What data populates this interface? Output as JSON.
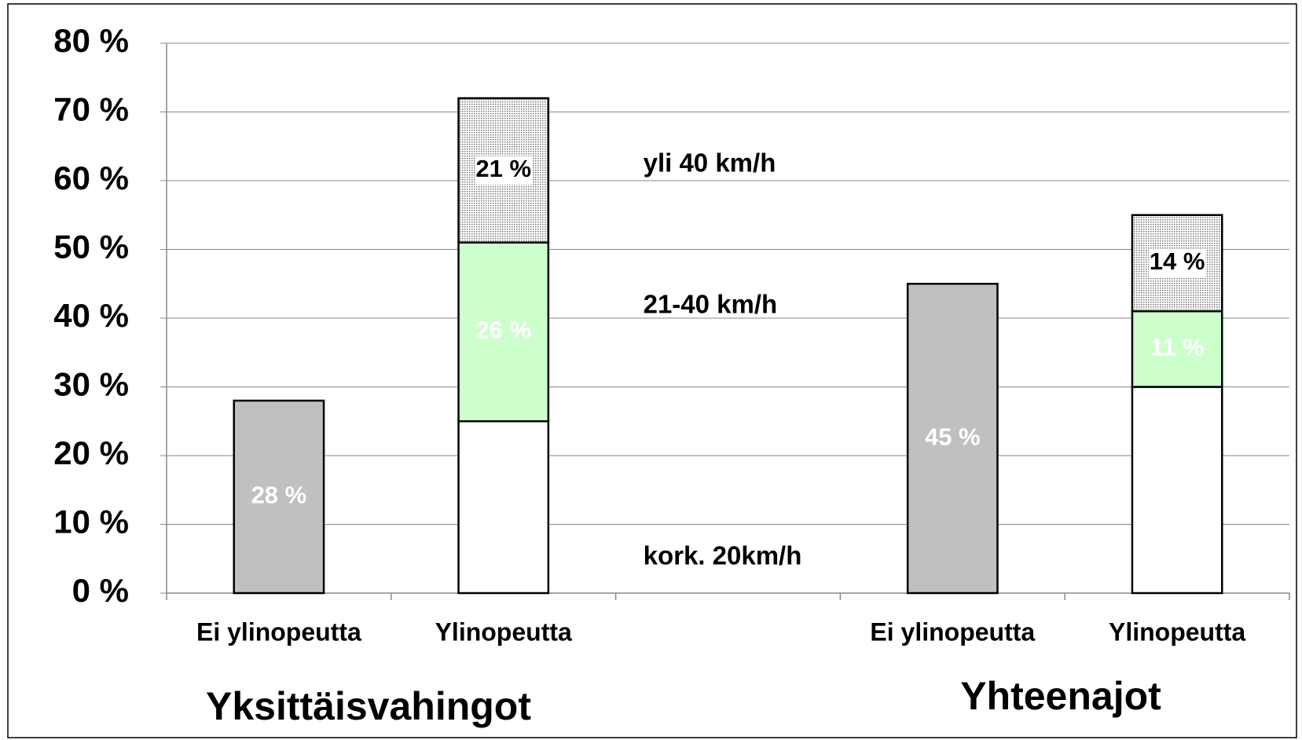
{
  "chart_data": {
    "type": "stacked_bar",
    "categories": [
      "Ei ylinopeutta",
      "Ylinopeutta",
      null,
      "Ei ylinopeutta",
      "Ylinopeutta"
    ],
    "groups": [
      "Yksittäisvahingot",
      "Yhteenajot"
    ],
    "series": [
      {
        "color": "#c0c0c0",
        "values": [
          28,
          null,
          null,
          45,
          null
        ],
        "value_labels": [
          "28 %",
          null,
          null,
          "45 %",
          null
        ],
        "label_color": "#ffffff"
      },
      {
        "name": "kork. 20km/h",
        "color": "#ffffff",
        "values": [
          null,
          25,
          null,
          null,
          30
        ]
      },
      {
        "name": "21-40 km/h",
        "color": "#ccffcc",
        "values": [
          null,
          26,
          null,
          null,
          11
        ],
        "value_labels": [
          null,
          "26 %",
          null,
          null,
          "11 %"
        ],
        "label_color": "#ffffff"
      },
      {
        "name": "yli 40 km/h",
        "color": "dots",
        "values": [
          null,
          21,
          null,
          null,
          14
        ],
        "value_labels": [
          null,
          "21 %",
          null,
          null,
          "14 %"
        ],
        "label_color": "#000000"
      }
    ],
    "ylim": [
      0,
      80
    ],
    "yticks": [
      {
        "value": 0,
        "label": "0 %"
      },
      {
        "value": 10,
        "label": "10 %"
      },
      {
        "value": 20,
        "label": "20 %"
      },
      {
        "value": 30,
        "label": "30 %"
      },
      {
        "value": 40,
        "label": "40 %"
      },
      {
        "value": 50,
        "label": "50 %"
      },
      {
        "value": 60,
        "label": "60 %"
      },
      {
        "value": 70,
        "label": "70 %"
      },
      {
        "value": 80,
        "label": "80 %"
      }
    ],
    "grid": true
  }
}
